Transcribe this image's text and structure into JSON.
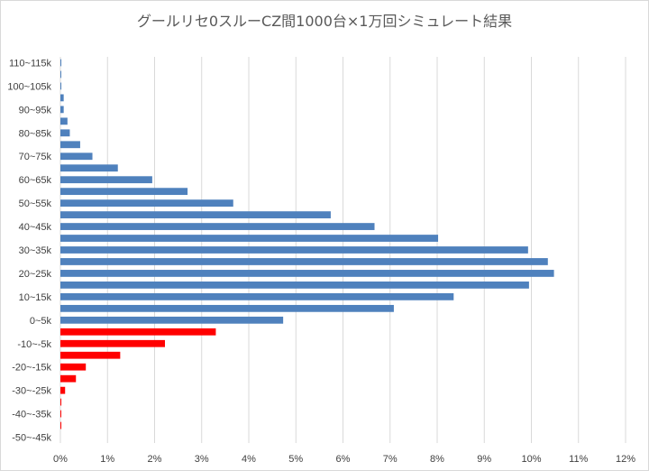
{
  "chart_data": {
    "type": "bar",
    "orientation": "horizontal",
    "title": "グールリセ0スルーCZ間1000台×1万回シミュレート結果",
    "xlabel": "",
    "ylabel": "",
    "xlim": [
      0,
      12
    ],
    "x_ticks": [
      "0%",
      "1%",
      "2%",
      "3%",
      "4%",
      "5%",
      "6%",
      "7%",
      "8%",
      "9%",
      "10%",
      "11%",
      "12%"
    ],
    "grid": true,
    "categories": [
      "110~115k",
      "105~110k",
      "100~105k",
      "95~100k",
      "90~95k",
      "85~90k",
      "80~85k",
      "75~80k",
      "70~75k",
      "65~70k",
      "60~65k",
      "55~60k",
      "50~55k",
      "45~50k",
      "40~45k",
      "35~40k",
      "30~35k",
      "25~30k",
      "20~25k",
      "15~20k",
      "10~15k",
      "5~10k",
      "0~5k",
      "-5~0k",
      "-10~-5k",
      "-15~-10k",
      "-20~-15k",
      "-25~-20k",
      "-30~-25k",
      "-35~-30k",
      "-40~-35k",
      "-45~-40k",
      "-50~-45k"
    ],
    "shown_category_labels": [
      "110~115k",
      "100~105k",
      "90~95k",
      "80~85k",
      "70~75k",
      "60~65k",
      "50~55k",
      "40~45k",
      "30~35k",
      "20~25k",
      "10~15k",
      "0~5k",
      "-10~-5k",
      "-20~-15k",
      "-30~-25k",
      "-40~-35k",
      "-50~-45k"
    ],
    "values": [
      0.02,
      0.01,
      0.02,
      0.07,
      0.07,
      0.15,
      0.2,
      0.42,
      0.68,
      1.22,
      1.95,
      2.7,
      3.67,
      5.74,
      6.67,
      8.02,
      9.93,
      10.35,
      10.48,
      9.95,
      8.35,
      7.08,
      4.73,
      3.3,
      2.22,
      1.27,
      0.54,
      0.33,
      0.1,
      0.02,
      0.01,
      0.02,
      0.0
    ],
    "colors": {
      "positive": "#4f81bd",
      "negative": "#ff0000"
    }
  }
}
